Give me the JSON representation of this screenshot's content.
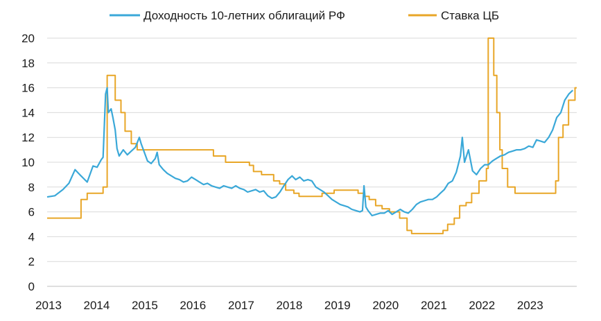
{
  "chart_data": {
    "type": "line",
    "title": "",
    "xlabel": "",
    "ylabel": "",
    "ylim": [
      0,
      20
    ],
    "yticks": [
      0,
      2,
      4,
      6,
      8,
      10,
      12,
      14,
      16,
      18,
      20
    ],
    "xlim": [
      "2013-01-01",
      "2023-12-31"
    ],
    "xticks": [
      "2013",
      "2014",
      "2015",
      "2016",
      "2017",
      "2018",
      "2019",
      "2020",
      "2021",
      "2022",
      "2023"
    ],
    "grid": "horizontal",
    "legend_position": "top",
    "series": [
      {
        "name": "Доходность 10-летних облигаций РФ",
        "color": "#3aa8d8",
        "style": "line",
        "points": [
          [
            "2013-01-01",
            7.2
          ],
          [
            "2013-03-01",
            7.3
          ],
          [
            "2013-05-01",
            7.8
          ],
          [
            "2013-06-15",
            8.3
          ],
          [
            "2013-08-01",
            9.4
          ],
          [
            "2013-09-15",
            8.9
          ],
          [
            "2013-11-01",
            8.4
          ],
          [
            "2013-12-15",
            9.7
          ],
          [
            "2014-01-15",
            9.6
          ],
          [
            "2014-02-15",
            10.2
          ],
          [
            "2014-03-01",
            10.4
          ],
          [
            "2014-03-10",
            12.8
          ],
          [
            "2014-03-20",
            15.5
          ],
          [
            "2014-04-01",
            16.0
          ],
          [
            "2014-04-10",
            14.0
          ],
          [
            "2014-05-01",
            14.3
          ],
          [
            "2014-05-15",
            13.6
          ],
          [
            "2014-06-01",
            12.6
          ],
          [
            "2014-06-15",
            11.1
          ],
          [
            "2014-07-01",
            10.5
          ],
          [
            "2014-08-01",
            11.0
          ],
          [
            "2014-09-01",
            10.6
          ],
          [
            "2014-10-01",
            10.9
          ],
          [
            "2014-11-01",
            11.2
          ],
          [
            "2014-12-01",
            12.0
          ],
          [
            "2014-12-15",
            11.5
          ],
          [
            "2015-01-01",
            11.0
          ],
          [
            "2015-02-01",
            10.1
          ],
          [
            "2015-03-01",
            9.9
          ],
          [
            "2015-04-01",
            10.3
          ],
          [
            "2015-04-15",
            10.8
          ],
          [
            "2015-05-01",
            9.8
          ],
          [
            "2015-06-01",
            9.4
          ],
          [
            "2015-07-01",
            9.1
          ],
          [
            "2015-08-01",
            8.9
          ],
          [
            "2015-09-01",
            8.7
          ],
          [
            "2015-10-01",
            8.6
          ],
          [
            "2015-11-01",
            8.4
          ],
          [
            "2015-12-01",
            8.5
          ],
          [
            "2016-01-01",
            8.8
          ],
          [
            "2016-02-01",
            8.6
          ],
          [
            "2016-03-01",
            8.4
          ],
          [
            "2016-04-01",
            8.2
          ],
          [
            "2016-05-01",
            8.3
          ],
          [
            "2016-06-01",
            8.1
          ],
          [
            "2016-07-01",
            8.0
          ],
          [
            "2016-08-01",
            7.9
          ],
          [
            "2016-09-01",
            8.1
          ],
          [
            "2016-10-01",
            8.0
          ],
          [
            "2016-11-01",
            7.9
          ],
          [
            "2016-12-01",
            8.1
          ],
          [
            "2017-01-01",
            7.9
          ],
          [
            "2017-02-01",
            7.8
          ],
          [
            "2017-03-01",
            7.6
          ],
          [
            "2017-04-01",
            7.7
          ],
          [
            "2017-05-01",
            7.8
          ],
          [
            "2017-06-01",
            7.6
          ],
          [
            "2017-07-01",
            7.7
          ],
          [
            "2017-08-01",
            7.3
          ],
          [
            "2017-09-01",
            7.1
          ],
          [
            "2017-10-01",
            7.2
          ],
          [
            "2017-11-01",
            7.6
          ],
          [
            "2017-12-01",
            8.1
          ],
          [
            "2018-01-01",
            8.6
          ],
          [
            "2018-02-01",
            8.9
          ],
          [
            "2018-03-01",
            8.6
          ],
          [
            "2018-04-01",
            8.8
          ],
          [
            "2018-05-01",
            8.5
          ],
          [
            "2018-06-01",
            8.6
          ],
          [
            "2018-07-01",
            8.5
          ],
          [
            "2018-08-01",
            8.0
          ],
          [
            "2018-09-01",
            7.8
          ],
          [
            "2018-10-01",
            7.6
          ],
          [
            "2018-11-01",
            7.3
          ],
          [
            "2018-12-01",
            7.0
          ],
          [
            "2019-01-01",
            6.8
          ],
          [
            "2019-02-01",
            6.6
          ],
          [
            "2019-03-01",
            6.5
          ],
          [
            "2019-04-01",
            6.4
          ],
          [
            "2019-05-01",
            6.2
          ],
          [
            "2019-06-01",
            6.1
          ],
          [
            "2019-07-01",
            6.0
          ],
          [
            "2019-07-20",
            6.1
          ],
          [
            "2019-08-01",
            8.1
          ],
          [
            "2019-08-15",
            6.4
          ],
          [
            "2019-09-01",
            6.1
          ],
          [
            "2019-10-01",
            5.7
          ],
          [
            "2019-11-01",
            5.8
          ],
          [
            "2019-12-01",
            5.9
          ],
          [
            "2020-01-01",
            5.9
          ],
          [
            "2020-02-01",
            6.1
          ],
          [
            "2020-03-01",
            5.8
          ],
          [
            "2020-04-01",
            6.0
          ],
          [
            "2020-05-01",
            6.2
          ],
          [
            "2020-06-01",
            6.0
          ],
          [
            "2020-07-01",
            5.9
          ],
          [
            "2020-08-01",
            6.2
          ],
          [
            "2020-09-01",
            6.6
          ],
          [
            "2020-10-01",
            6.8
          ],
          [
            "2020-11-01",
            6.9
          ],
          [
            "2020-12-01",
            7.0
          ],
          [
            "2021-01-01",
            7.0
          ],
          [
            "2021-02-01",
            7.2
          ],
          [
            "2021-03-01",
            7.5
          ],
          [
            "2021-04-01",
            7.8
          ],
          [
            "2021-05-01",
            8.3
          ],
          [
            "2021-06-01",
            8.5
          ],
          [
            "2021-07-01",
            9.2
          ],
          [
            "2021-08-01",
            10.5
          ],
          [
            "2021-08-15",
            12.0
          ],
          [
            "2021-09-01",
            10.0
          ],
          [
            "2021-10-01",
            11.0
          ],
          [
            "2021-11-01",
            9.3
          ],
          [
            "2021-12-01",
            9.0
          ],
          [
            "2022-01-01",
            9.5
          ],
          [
            "2022-02-01",
            9.8
          ],
          [
            "2022-03-01",
            9.8
          ],
          [
            "2022-04-01",
            10.1
          ],
          [
            "2022-05-01",
            10.3
          ],
          [
            "2022-06-01",
            10.5
          ],
          [
            "2022-07-01",
            10.6
          ],
          [
            "2022-08-01",
            10.8
          ],
          [
            "2022-09-01",
            10.9
          ],
          [
            "2022-10-01",
            11.0
          ],
          [
            "2022-11-01",
            11.0
          ],
          [
            "2022-12-01",
            11.1
          ],
          [
            "2023-01-01",
            11.3
          ],
          [
            "2023-02-01",
            11.2
          ],
          [
            "2023-03-01",
            11.8
          ],
          [
            "2023-04-01",
            11.7
          ],
          [
            "2023-05-01",
            11.6
          ],
          [
            "2023-06-01",
            12.0
          ],
          [
            "2023-07-01",
            12.6
          ],
          [
            "2023-08-01",
            13.6
          ],
          [
            "2023-09-01",
            14.0
          ],
          [
            "2023-10-01",
            15.0
          ],
          [
            "2023-11-01",
            15.5
          ],
          [
            "2023-12-01",
            15.8
          ]
        ]
      },
      {
        "name": "Ставка ЦБ",
        "color": "#e8a627",
        "style": "step",
        "points": [
          [
            "2013-01-01",
            5.5
          ],
          [
            "2013-09-15",
            7.0
          ],
          [
            "2013-11-01",
            7.5
          ],
          [
            "2014-03-01",
            8.0
          ],
          [
            "2014-04-01",
            17.0
          ],
          [
            "2014-06-01",
            15.0
          ],
          [
            "2014-07-15",
            14.0
          ],
          [
            "2014-08-15",
            12.5
          ],
          [
            "2014-10-01",
            11.5
          ],
          [
            "2014-11-15",
            11.0
          ],
          [
            "2016-06-15",
            10.5
          ],
          [
            "2016-09-15",
            10.0
          ],
          [
            "2017-03-15",
            9.75
          ],
          [
            "2017-04-15",
            9.25
          ],
          [
            "2017-06-15",
            9.0
          ],
          [
            "2017-09-15",
            8.5
          ],
          [
            "2017-10-30",
            8.25
          ],
          [
            "2017-12-15",
            7.75
          ],
          [
            "2018-02-15",
            7.5
          ],
          [
            "2018-03-26",
            7.25
          ],
          [
            "2018-09-17",
            7.5
          ],
          [
            "2018-12-17",
            7.75
          ],
          [
            "2019-06-17",
            7.5
          ],
          [
            "2019-07-29",
            7.25
          ],
          [
            "2019-09-09",
            7.0
          ],
          [
            "2019-10-28",
            6.5
          ],
          [
            "2019-12-16",
            6.25
          ],
          [
            "2020-02-10",
            6.0
          ],
          [
            "2020-04-27",
            5.5
          ],
          [
            "2020-06-22",
            4.5
          ],
          [
            "2020-07-27",
            4.25
          ],
          [
            "2021-03-22",
            4.5
          ],
          [
            "2021-04-26",
            5.0
          ],
          [
            "2021-06-15",
            5.5
          ],
          [
            "2021-07-26",
            6.5
          ],
          [
            "2021-09-13",
            6.75
          ],
          [
            "2021-10-25",
            7.5
          ],
          [
            "2021-12-20",
            8.5
          ],
          [
            "2022-02-14",
            9.5
          ],
          [
            "2022-02-28",
            20.0
          ],
          [
            "2022-04-11",
            17.0
          ],
          [
            "2022-05-04",
            14.0
          ],
          [
            "2022-05-27",
            11.0
          ],
          [
            "2022-06-14",
            9.5
          ],
          [
            "2022-07-25",
            8.0
          ],
          [
            "2022-09-19",
            7.5
          ],
          [
            "2023-07-24",
            8.5
          ],
          [
            "2023-08-15",
            12.0
          ],
          [
            "2023-09-18",
            13.0
          ],
          [
            "2023-10-30",
            15.0
          ],
          [
            "2023-12-18",
            16.0
          ],
          [
            "2024-01-01",
            16.0
          ]
        ]
      }
    ]
  }
}
